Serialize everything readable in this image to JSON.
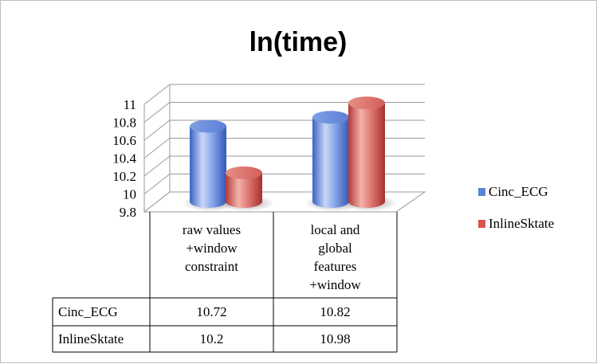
{
  "chart_data": {
    "type": "bar",
    "title": "ln(time)",
    "categories": [
      [
        "raw values",
        "+window",
        "constraint"
      ],
      [
        "local and",
        "global",
        "features",
        "+window"
      ]
    ],
    "series": [
      {
        "name": "Cinc_ECG",
        "values": [
          10.72,
          10.82
        ],
        "color": "#5b83d6"
      },
      {
        "name": "InlineSktate",
        "values": [
          10.2,
          10.98
        ],
        "color": "#d9534f"
      }
    ],
    "table_values": [
      [
        "10.72",
        "10.82"
      ],
      [
        "10.2",
        "10.98"
      ]
    ],
    "ylim": [
      9.8,
      11
    ],
    "yticks": [
      "9.8",
      "10",
      "10.2",
      "10.4",
      "10.6",
      "10.8",
      "11"
    ],
    "grid": true,
    "legend": "right",
    "style": "3d-cylinder with data table"
  }
}
